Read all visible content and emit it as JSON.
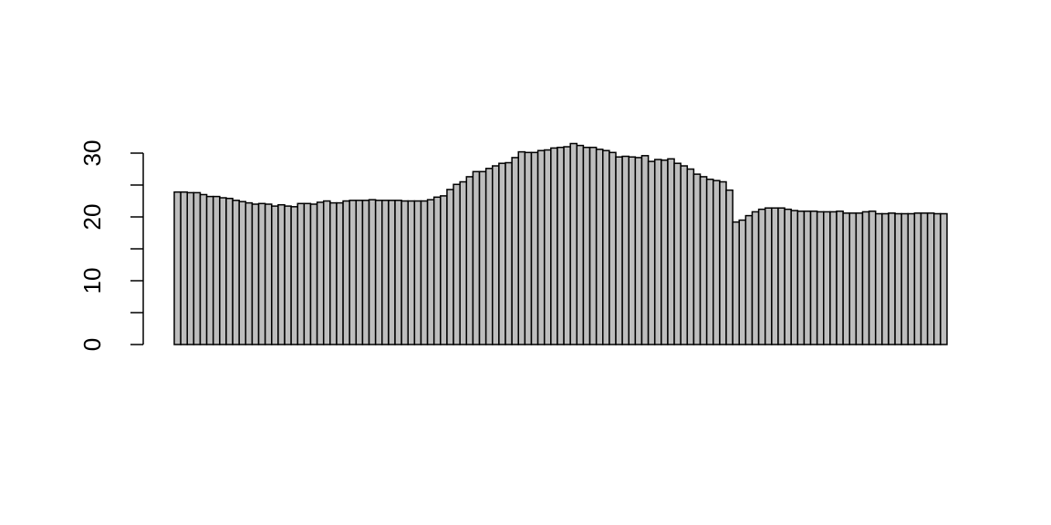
{
  "chart_data": {
    "type": "bar",
    "title": "",
    "xlabel": "",
    "ylabel": "",
    "ylim": [
      0,
      30
    ],
    "yticks": [
      0,
      5,
      10,
      15,
      20,
      25,
      30
    ],
    "ytick_labels": [
      "0",
      "10",
      "20",
      "30"
    ],
    "labeled_ticks": [
      0,
      10,
      20,
      30
    ],
    "bar_fill": "#bebebe",
    "bar_stroke": "#000000",
    "values": [
      23.9,
      23.9,
      23.8,
      23.8,
      23.5,
      23.2,
      23.2,
      23.0,
      22.9,
      22.6,
      22.4,
      22.2,
      22.0,
      22.1,
      22.0,
      21.7,
      21.9,
      21.7,
      21.6,
      22.1,
      22.1,
      22.0,
      22.3,
      22.5,
      22.2,
      22.2,
      22.5,
      22.6,
      22.6,
      22.6,
      22.7,
      22.6,
      22.6,
      22.6,
      22.6,
      22.5,
      22.5,
      22.5,
      22.5,
      22.7,
      23.1,
      23.3,
      24.3,
      25.1,
      25.5,
      26.3,
      27.1,
      27.1,
      27.6,
      28.0,
      28.4,
      28.5,
      29.3,
      30.2,
      30.1,
      30.1,
      30.4,
      30.5,
      30.8,
      30.9,
      31.0,
      31.5,
      31.2,
      30.9,
      30.9,
      30.6,
      30.4,
      30.1,
      29.4,
      29.5,
      29.4,
      29.3,
      29.6,
      28.7,
      29.0,
      28.9,
      29.1,
      28.4,
      28.0,
      27.5,
      26.7,
      26.3,
      25.9,
      25.7,
      25.5,
      24.2,
      19.2,
      19.5,
      20.2,
      20.8,
      21.2,
      21.4,
      21.4,
      21.4,
      21.2,
      21.0,
      20.9,
      20.9,
      20.9,
      20.8,
      20.8,
      20.8,
      20.9,
      20.6,
      20.6,
      20.6,
      20.8,
      20.9,
      20.5,
      20.5,
      20.6,
      20.5,
      20.5,
      20.5,
      20.6,
      20.6,
      20.6,
      20.5,
      20.5
    ]
  }
}
